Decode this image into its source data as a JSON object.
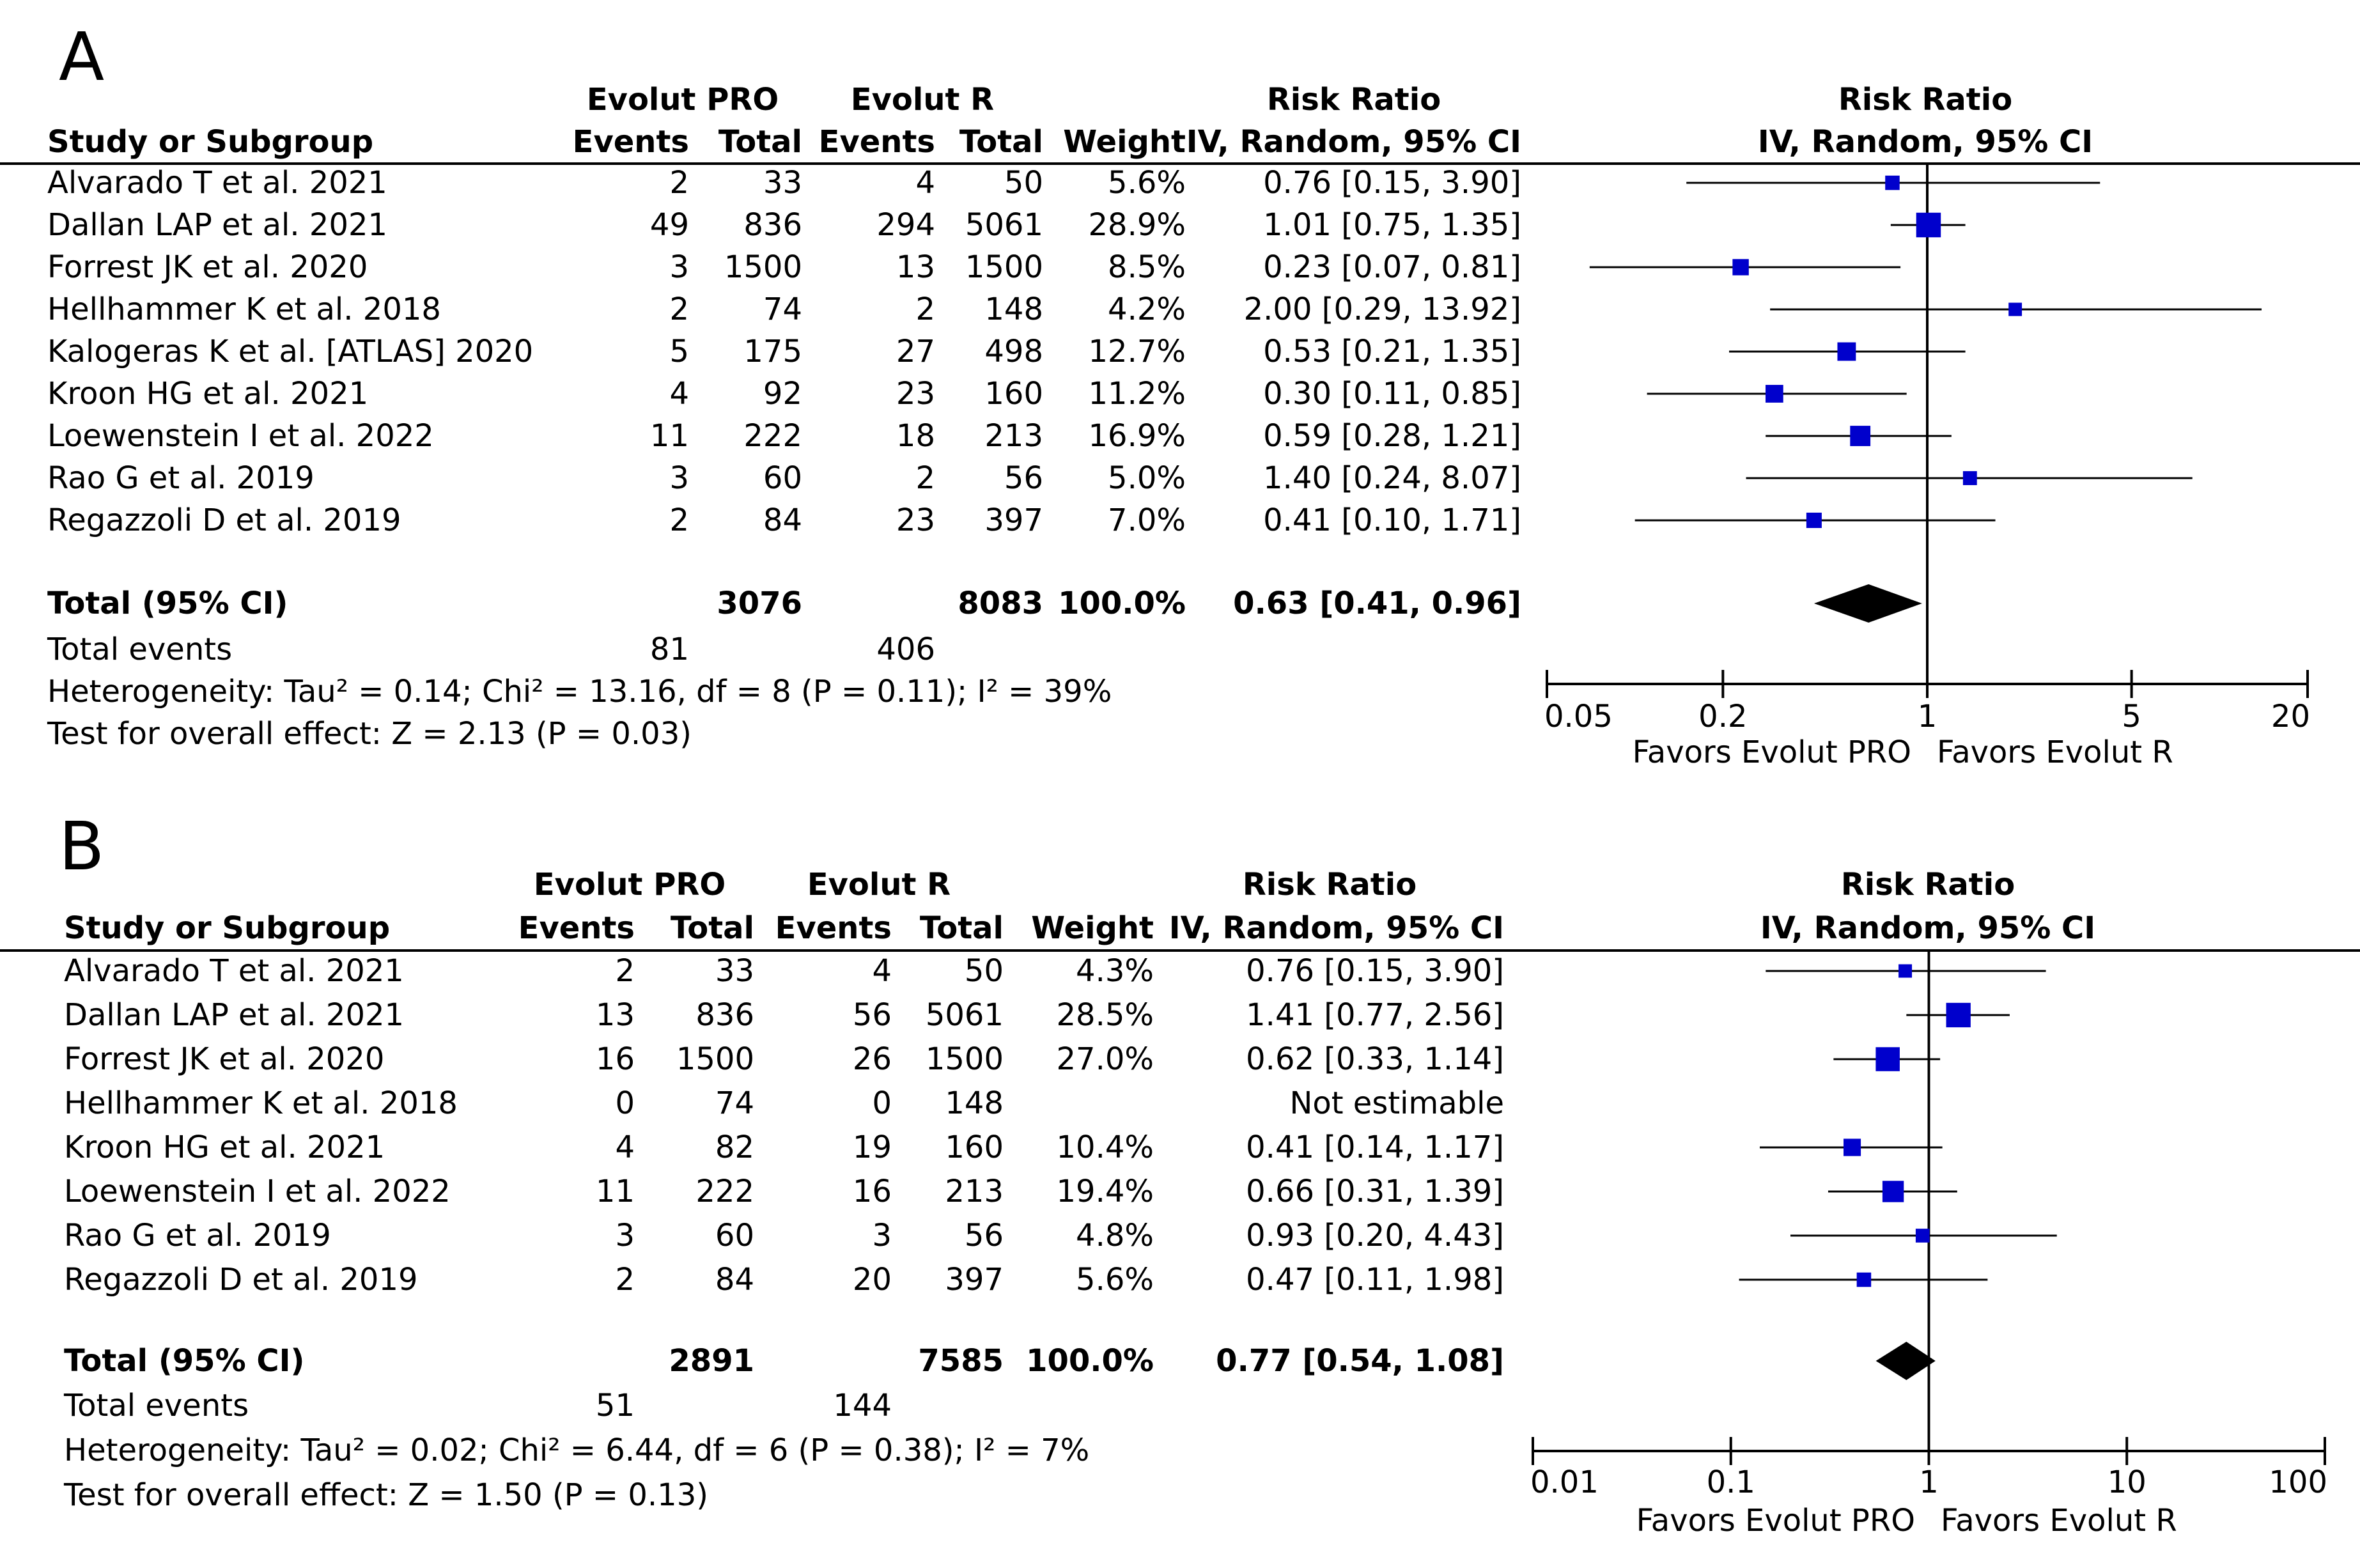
{
  "chart_data": [
    {
      "type": "forest",
      "panel": "A",
      "headers": {
        "study": "Study or Subgroup",
        "group1": "Evolut PRO",
        "group2": "Evolut R",
        "events": "Events",
        "total": "Total",
        "weight": "Weight",
        "effect_title": "Risk Ratio",
        "effect_method": "IV, Random, 95% CI"
      },
      "studies": [
        {
          "name": "Alvarado T et al. 2021",
          "e1": "2",
          "n1": "33",
          "e2": "4",
          "n2": "50",
          "weight": "5.6%",
          "ci_text": "0.76 [0.15, 3.90]",
          "rr": 0.76,
          "lo": 0.15,
          "hi": 3.9,
          "w": 5.6
        },
        {
          "name": "Dallan LAP et al. 2021",
          "e1": "49",
          "n1": "836",
          "e2": "294",
          "n2": "5061",
          "weight": "28.9%",
          "ci_text": "1.01 [0.75, 1.35]",
          "rr": 1.01,
          "lo": 0.75,
          "hi": 1.35,
          "w": 28.9
        },
        {
          "name": "Forrest JK et al. 2020",
          "e1": "3",
          "n1": "1500",
          "e2": "13",
          "n2": "1500",
          "weight": "8.5%",
          "ci_text": "0.23 [0.07, 0.81]",
          "rr": 0.23,
          "lo": 0.07,
          "hi": 0.81,
          "w": 8.5
        },
        {
          "name": "Hellhammer K et al. 2018",
          "e1": "2",
          "n1": "74",
          "e2": "2",
          "n2": "148",
          "weight": "4.2%",
          "ci_text": "2.00 [0.29, 13.92]",
          "rr": 2.0,
          "lo": 0.29,
          "hi": 13.92,
          "w": 4.2
        },
        {
          "name": "Kalogeras K et al. [ATLAS] 2020",
          "e1": "5",
          "n1": "175",
          "e2": "27",
          "n2": "498",
          "weight": "12.7%",
          "ci_text": "0.53 [0.21, 1.35]",
          "rr": 0.53,
          "lo": 0.21,
          "hi": 1.35,
          "w": 12.7
        },
        {
          "name": "Kroon HG et al. 2021",
          "e1": "4",
          "n1": "92",
          "e2": "23",
          "n2": "160",
          "weight": "11.2%",
          "ci_text": "0.30 [0.11, 0.85]",
          "rr": 0.3,
          "lo": 0.11,
          "hi": 0.85,
          "w": 11.2
        },
        {
          "name": "Loewenstein I et al. 2022",
          "e1": "11",
          "n1": "222",
          "e2": "18",
          "n2": "213",
          "weight": "16.9%",
          "ci_text": "0.59 [0.28, 1.21]",
          "rr": 0.59,
          "lo": 0.28,
          "hi": 1.21,
          "w": 16.9
        },
        {
          "name": "Rao G et al. 2019",
          "e1": "3",
          "n1": "60",
          "e2": "2",
          "n2": "56",
          "weight": "5.0%",
          "ci_text": "1.40 [0.24, 8.07]",
          "rr": 1.4,
          "lo": 0.24,
          "hi": 8.07,
          "w": 5.0
        },
        {
          "name": "Regazzoli D et al. 2019",
          "e1": "2",
          "n1": "84",
          "e2": "23",
          "n2": "397",
          "weight": "7.0%",
          "ci_text": "0.41 [0.10, 1.71]",
          "rr": 0.41,
          "lo": 0.1,
          "hi": 1.71,
          "w": 7.0
        }
      ],
      "total": {
        "label": "Total (95% CI)",
        "n1": "3076",
        "n2": "8083",
        "weight": "100.0%",
        "ci_text": "0.63 [0.41, 0.96]",
        "rr": 0.63,
        "lo": 0.41,
        "hi": 0.96
      },
      "total_events": {
        "label": "Total events",
        "e1": "81",
        "e2": "406"
      },
      "heterogeneity": "Heterogeneity: Tau² = 0.14; Chi² = 13.16, df = 8 (P = 0.11); I² = 39%",
      "overall_effect": "Test for overall effect: Z = 2.13 (P = 0.03)",
      "axis": {
        "scale": "log",
        "range": [
          0.05,
          20
        ],
        "ticks": [
          0.05,
          0.2,
          1,
          5,
          20
        ],
        "tick_labels": [
          "0.05",
          "0.2",
          "1",
          "5",
          "20"
        ],
        "favors_left": "Favors Evolut PRO",
        "favors_right": "Favors Evolut R"
      }
    },
    {
      "type": "forest",
      "panel": "B",
      "headers": {
        "study": "Study or Subgroup",
        "group1": "Evolut PRO",
        "group2": "Evolut R",
        "events": "Events",
        "total": "Total",
        "weight": "Weight",
        "effect_title": "Risk Ratio",
        "effect_method": "IV, Random, 95% CI"
      },
      "studies": [
        {
          "name": "Alvarado T et al. 2021",
          "e1": "2",
          "n1": "33",
          "e2": "4",
          "n2": "50",
          "weight": "4.3%",
          "ci_text": "0.76 [0.15, 3.90]",
          "rr": 0.76,
          "lo": 0.15,
          "hi": 3.9,
          "w": 4.3
        },
        {
          "name": "Dallan LAP et al. 2021",
          "e1": "13",
          "n1": "836",
          "e2": "56",
          "n2": "5061",
          "weight": "28.5%",
          "ci_text": "1.41 [0.77, 2.56]",
          "rr": 1.41,
          "lo": 0.77,
          "hi": 2.56,
          "w": 28.5
        },
        {
          "name": "Forrest JK et al. 2020",
          "e1": "16",
          "n1": "1500",
          "e2": "26",
          "n2": "1500",
          "weight": "27.0%",
          "ci_text": "0.62 [0.33, 1.14]",
          "rr": 0.62,
          "lo": 0.33,
          "hi": 1.14,
          "w": 27.0
        },
        {
          "name": "Hellhammer K et al. 2018",
          "e1": "0",
          "n1": "74",
          "e2": "0",
          "n2": "148",
          "weight": "",
          "ci_text": "Not estimable",
          "rr": null,
          "lo": null,
          "hi": null,
          "w": null
        },
        {
          "name": "Kroon HG et al. 2021",
          "e1": "4",
          "n1": "82",
          "e2": "19",
          "n2": "160",
          "weight": "10.4%",
          "ci_text": "0.41 [0.14, 1.17]",
          "rr": 0.41,
          "lo": 0.14,
          "hi": 1.17,
          "w": 10.4
        },
        {
          "name": "Loewenstein I et al. 2022",
          "e1": "11",
          "n1": "222",
          "e2": "16",
          "n2": "213",
          "weight": "19.4%",
          "ci_text": "0.66 [0.31, 1.39]",
          "rr": 0.66,
          "lo": 0.31,
          "hi": 1.39,
          "w": 19.4
        },
        {
          "name": "Rao G et al. 2019",
          "e1": "3",
          "n1": "60",
          "e2": "3",
          "n2": "56",
          "weight": "4.8%",
          "ci_text": "0.93 [0.20, 4.43]",
          "rr": 0.93,
          "lo": 0.2,
          "hi": 4.43,
          "w": 4.8
        },
        {
          "name": "Regazzoli D et al. 2019",
          "e1": "2",
          "n1": "84",
          "e2": "20",
          "n2": "397",
          "weight": "5.6%",
          "ci_text": "0.47 [0.11, 1.98]",
          "rr": 0.47,
          "lo": 0.11,
          "hi": 1.98,
          "w": 5.6
        }
      ],
      "total": {
        "label": "Total (95% CI)",
        "n1": "2891",
        "n2": "7585",
        "weight": "100.0%",
        "ci_text": "0.77 [0.54, 1.08]",
        "rr": 0.77,
        "lo": 0.54,
        "hi": 1.08
      },
      "total_events": {
        "label": "Total events",
        "e1": "51",
        "e2": "144"
      },
      "heterogeneity": "Heterogeneity: Tau² = 0.02; Chi² = 6.44, df = 6 (P = 0.38); I² = 7%",
      "overall_effect": "Test for overall effect: Z = 1.50 (P = 0.13)",
      "axis": {
        "scale": "log",
        "range": [
          0.01,
          100
        ],
        "ticks": [
          0.01,
          0.1,
          1,
          10,
          100
        ],
        "tick_labels": [
          "0.01",
          "0.1",
          "1",
          "10",
          "100"
        ],
        "favors_left": "Favors Evolut PRO",
        "favors_right": "Favors Evolut R"
      }
    }
  ],
  "colors": {
    "marker": "#0000cc",
    "line": "#000000",
    "diamond": "#000000"
  }
}
